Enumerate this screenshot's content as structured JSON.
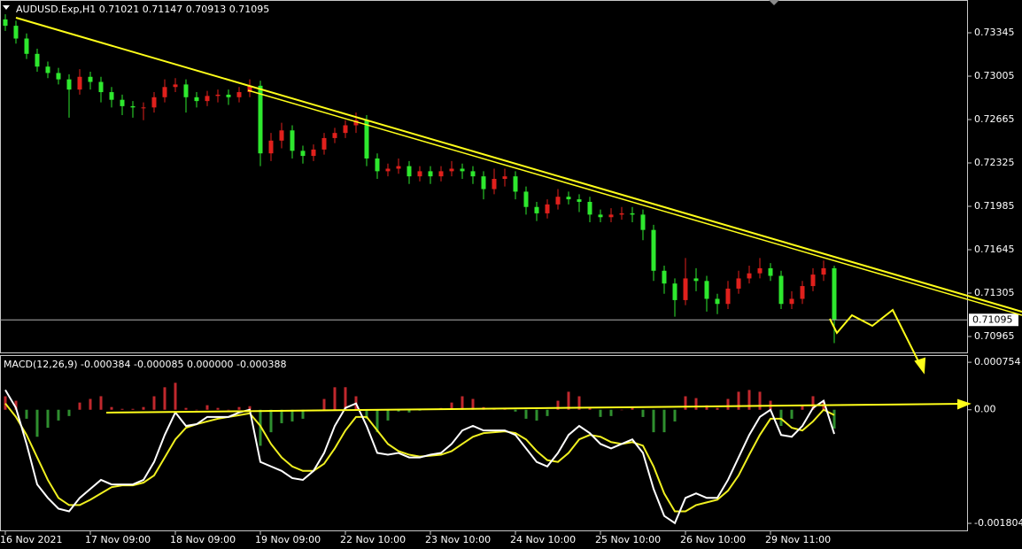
{
  "chart_data": [
    {
      "type": "candlestick",
      "symbol": "AUDUSD.Exp,H1",
      "ohlc": [
        0.71021,
        0.71147,
        0.70913,
        0.71095
      ],
      "up_color": "#e0201c",
      "down_color": "#2ee82e",
      "ylim": [
        0.7084,
        0.73602
      ],
      "yticks": [
        0.73345,
        0.73005,
        0.72665,
        0.72325,
        0.71985,
        0.71645,
        0.71305,
        0.70965
      ],
      "x": [
        "16 Nov 2021",
        null,
        null,
        null,
        null,
        null,
        null,
        null,
        "17 Nov 09:00",
        null,
        null,
        null,
        null,
        null,
        null,
        null,
        "18 Nov 09:00",
        null,
        null,
        null,
        null,
        null,
        null,
        null,
        "19 Nov 09:00",
        null,
        null,
        null,
        null,
        null,
        null,
        null,
        "22 Nov 10:00",
        null,
        null,
        null,
        null,
        null,
        null,
        null,
        "23 Nov 10:00",
        null,
        null,
        null,
        null,
        null,
        null,
        null,
        "24 Nov 10:00",
        null,
        null,
        null,
        null,
        null,
        null,
        null,
        "25 Nov 10:00",
        null,
        null,
        null,
        null,
        null,
        null,
        null,
        "26 Nov 10:00",
        null,
        null,
        null,
        null,
        null,
        null,
        null,
        "29 Nov 11:00",
        null,
        null,
        null,
        null,
        null,
        null
      ],
      "open": [
        0.7345,
        0.734,
        0.733,
        0.7318,
        0.7308,
        0.7303,
        0.7298,
        0.729,
        0.73,
        0.7296,
        0.7288,
        0.7282,
        0.7277,
        0.7276,
        0.7276,
        0.7284,
        0.7292,
        0.7294,
        0.7284,
        0.7281,
        0.7285,
        0.7286,
        0.7284,
        0.7288,
        0.7293,
        0.724,
        0.725,
        0.7258,
        0.7242,
        0.7238,
        0.7243,
        0.7252,
        0.7256,
        0.7262,
        0.7266,
        0.7236,
        0.7226,
        0.7228,
        0.723,
        0.7222,
        0.7226,
        0.7222,
        0.7226,
        0.7228,
        0.7226,
        0.7222,
        0.7212,
        0.722,
        0.7222,
        0.721,
        0.7198,
        0.7193,
        0.72,
        0.7206,
        0.7204,
        0.7202,
        0.7192,
        0.719,
        0.7192,
        0.7193,
        0.7192,
        0.718,
        0.7148,
        0.7138,
        0.7125,
        0.7142,
        0.714,
        0.7126,
        0.7122,
        0.7134,
        0.7142,
        0.7146,
        0.715,
        0.7144,
        0.7122,
        0.7126,
        0.7136,
        0.7145,
        0.715
      ],
      "high": [
        0.7349,
        0.7344,
        0.7334,
        0.7322,
        0.7312,
        0.7307,
        0.7302,
        0.7306,
        0.7304,
        0.73,
        0.7292,
        0.7286,
        0.7281,
        0.728,
        0.7288,
        0.7298,
        0.7299,
        0.7298,
        0.7288,
        0.7289,
        0.729,
        0.729,
        0.7292,
        0.7298,
        0.7297,
        0.7256,
        0.7264,
        0.7262,
        0.7246,
        0.7247,
        0.7256,
        0.726,
        0.7266,
        0.7272,
        0.727,
        0.724,
        0.7232,
        0.7236,
        0.7234,
        0.723,
        0.723,
        0.723,
        0.7234,
        0.7232,
        0.723,
        0.7226,
        0.7228,
        0.7228,
        0.7226,
        0.7214,
        0.7202,
        0.7204,
        0.7212,
        0.721,
        0.7208,
        0.7206,
        0.7196,
        0.7197,
        0.7198,
        0.7198,
        0.7196,
        0.7184,
        0.7152,
        0.7142,
        0.7158,
        0.715,
        0.7144,
        0.713,
        0.714,
        0.7148,
        0.7152,
        0.7158,
        0.7154,
        0.7148,
        0.7132,
        0.714,
        0.715,
        0.7156,
        0.7152
      ],
      "low": [
        0.7336,
        0.7326,
        0.7314,
        0.7304,
        0.7299,
        0.7294,
        0.7268,
        0.7286,
        0.729,
        0.728,
        0.7276,
        0.727,
        0.7268,
        0.7266,
        0.7272,
        0.728,
        0.7288,
        0.7272,
        0.7276,
        0.7277,
        0.728,
        0.7278,
        0.728,
        0.7284,
        0.723,
        0.7234,
        0.7244,
        0.7236,
        0.7232,
        0.7234,
        0.7239,
        0.7248,
        0.7252,
        0.7256,
        0.723,
        0.722,
        0.7222,
        0.7224,
        0.7216,
        0.7218,
        0.7216,
        0.7218,
        0.7222,
        0.722,
        0.7216,
        0.7204,
        0.7208,
        0.7214,
        0.7204,
        0.7192,
        0.7187,
        0.7189,
        0.7196,
        0.72,
        0.7194,
        0.7186,
        0.7186,
        0.7186,
        0.7188,
        0.7186,
        0.7172,
        0.714,
        0.713,
        0.7112,
        0.7121,
        0.7132,
        0.7116,
        0.7114,
        0.7118,
        0.713,
        0.7138,
        0.7142,
        0.714,
        0.7118,
        0.7118,
        0.7122,
        0.7132,
        0.714,
        0.70913
      ],
      "close": [
        0.734,
        0.733,
        0.7318,
        0.7308,
        0.7303,
        0.7298,
        0.729,
        0.73,
        0.7296,
        0.7288,
        0.7282,
        0.7277,
        0.7276,
        0.7276,
        0.7284,
        0.7292,
        0.7294,
        0.7284,
        0.7281,
        0.7285,
        0.7286,
        0.7284,
        0.7288,
        0.7293,
        0.724,
        0.725,
        0.7258,
        0.7242,
        0.7238,
        0.7243,
        0.7252,
        0.7256,
        0.7262,
        0.7266,
        0.7236,
        0.7226,
        0.7228,
        0.723,
        0.7222,
        0.7226,
        0.7222,
        0.7226,
        0.7228,
        0.7226,
        0.7222,
        0.7212,
        0.722,
        0.7222,
        0.721,
        0.7198,
        0.7193,
        0.72,
        0.7206,
        0.7204,
        0.7202,
        0.7192,
        0.719,
        0.7192,
        0.7193,
        0.7192,
        0.718,
        0.7148,
        0.7138,
        0.7125,
        0.7142,
        0.714,
        0.7126,
        0.7122,
        0.7134,
        0.7142,
        0.7146,
        0.715,
        0.7144,
        0.7122,
        0.7126,
        0.7136,
        0.7145,
        0.715,
        0.71095
      ]
    },
    {
      "type": "macd",
      "title": "MACD(12,26,9)",
      "params": [
        -0.000384,
        -8.5e-05,
        {
          "value": 0,
          "label": "0.000000"
        },
        -0.000388
      ],
      "ylim": [
        -0.00193,
        0.000854
      ],
      "yticks": [
        0.000754,
        {
          "value": 0,
          "label": "0.00"
        },
        -0.001804
      ],
      "hist_up_color": "#c0282d",
      "hist_down_color": "#2f8f2f",
      "macd_color": "#ffffff",
      "signal_color": "#f0f020",
      "histogram": [
        0.000214,
        0.000143,
        -0.000143,
        -0.000429,
        -0.000286,
        -0.000171,
        -0.0001,
        0.000114,
        0.000172,
        0.000215,
        4.3e-05,
        1.4e-05,
        1.4e-05,
        4.3e-05,
        0.000214,
        0.000357,
        0.000428,
        2.9e-05,
        0,
        7.2e-05,
        2.9e-05,
        0,
        4.3e-05,
        5.7e-05,
        -0.000572,
        -0.000357,
        -0.000214,
        -0.000186,
        -0.000143,
        0,
        0.000171,
        0.000357,
        0.000358,
        0.000214,
        -0.000143,
        -0.000357,
        -0.000171,
        -2.9e-05,
        -4.3e-05,
        -1.4e-05,
        1.5e-05,
        2.8e-05,
        0.000114,
        0.000214,
        0.000172,
        4.2e-05,
        2.8e-05,
        1.4e-05,
        -2.9e-05,
        -0.000143,
        -0.000172,
        -0.0001,
        0.000143,
        0.000286,
        0.000214,
        2.9e-05,
        -0.000114,
        -0.0001,
        0,
        4.3e-05,
        -0.000115,
        -0.000357,
        -0.000357,
        -0.000186,
        0.000214,
        0.000185,
        7.1e-05,
        2.9e-05,
        0.000172,
        0.000286,
        0.000314,
        0.000286,
        0.000143,
        -0.000257,
        -0.000143,
        7.2e-05,
        0.000215,
        0.000143,
        -0.000299
      ],
      "macd": [
        0.000314,
        2.9e-05,
        -0.000543,
        -0.001186,
        -0.0014,
        -0.001571,
        -0.001614,
        -0.0014,
        -0.001257,
        -0.001114,
        -0.001186,
        -0.001186,
        -0.001186,
        -0.001114,
        -0.000829,
        -0.0004,
        -4.3e-05,
        -0.000257,
        -0.000229,
        -0.000114,
        -0.000114,
        -0.000114,
        -4.3e-05,
        0,
        -0.000829,
        -0.0009,
        -0.000971,
        -0.001086,
        -0.001114,
        -0.000971,
        -0.000686,
        -0.000257,
        2.9e-05,
        0.0001,
        -0.000257,
        -0.000686,
        -0.000714,
        -0.000686,
        -0.000757,
        -0.000757,
        -0.000714,
        -0.000686,
        -0.000543,
        -0.000329,
        -0.000257,
        -0.000329,
        -0.000329,
        -0.000329,
        -0.0004,
        -0.000614,
        -0.000829,
        -0.0009,
        -0.000686,
        -0.0004,
        -0.000257,
        -0.000371,
        -0.000543,
        -0.000614,
        -0.000543,
        -0.000471,
        -0.000686,
        -0.001257,
        -0.001686,
        -0.0018,
        -0.0014,
        -0.001329,
        -0.0014,
        -0.0014,
        -0.001114,
        -0.000757,
        -0.0004,
        -0.000114,
        0,
        -0.0004,
        -0.000429,
        -0.000257,
        2.9e-05,
        0.000143,
        -0.000384
      ],
      "signal": [
        0.0001,
        -0.000114,
        -0.0004,
        -0.000757,
        -0.001114,
        -0.0014,
        -0.001514,
        -0.001514,
        -0.001429,
        -0.001329,
        -0.001229,
        -0.0012,
        -0.0012,
        -0.001157,
        -0.001043,
        -0.000757,
        -0.000471,
        -0.000286,
        -0.000229,
        -0.000186,
        -0.000143,
        -0.000114,
        -8.6e-05,
        -5.7e-05,
        -0.000257,
        -0.000543,
        -0.000757,
        -0.0009,
        -0.000971,
        -0.000971,
        -0.000857,
        -0.000614,
        -0.000329,
        -0.000114,
        -0.000114,
        -0.000329,
        -0.000543,
        -0.000657,
        -0.000714,
        -0.000743,
        -0.000729,
        -0.000714,
        -0.000657,
        -0.000543,
        -0.000429,
        -0.000371,
        -0.000357,
        -0.000343,
        -0.000371,
        -0.000471,
        -0.000657,
        -0.0008,
        -0.000829,
        -0.000686,
        -0.000471,
        -0.0004,
        -0.000429,
        -0.000514,
        -0.000543,
        -0.000514,
        -0.000571,
        -0.0009,
        -0.001329,
        -0.001614,
        -0.001614,
        -0.001514,
        -0.001471,
        -0.001429,
        -0.001286,
        -0.001043,
        -0.000714,
        -0.0004,
        -0.000143,
        -0.000143,
        -0.000286,
        -0.000329,
        -0.000186,
        0,
        -8.5e-05
      ]
    }
  ]
}
